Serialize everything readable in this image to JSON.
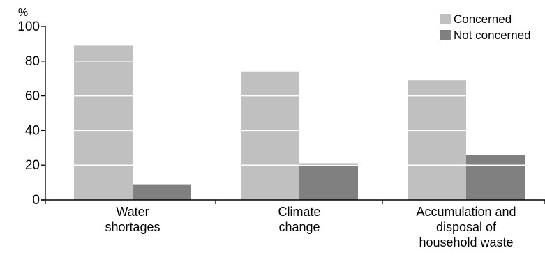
{
  "chart_data": {
    "type": "bar",
    "ylabel": "%",
    "ylim": [
      0,
      100
    ],
    "yticks": [
      0,
      20,
      40,
      60,
      80,
      100
    ],
    "categories": [
      [
        "Water",
        "shortages"
      ],
      [
        "Climate",
        "change"
      ],
      [
        "Accumulation and",
        "disposal of",
        "household waste"
      ]
    ],
    "series": [
      {
        "name": "Concerned",
        "color": "#c0c0c0",
        "values": [
          89,
          74,
          69
        ]
      },
      {
        "name": "Not concerned",
        "color": "#808080",
        "values": [
          9,
          21,
          26
        ]
      }
    ],
    "grid": "white lines across bars",
    "legend_position": "top-right"
  }
}
